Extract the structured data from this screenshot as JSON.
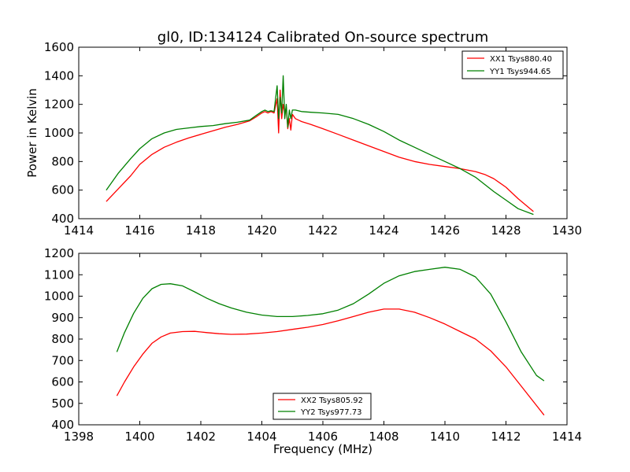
{
  "chart_data": [
    {
      "type": "line",
      "title": "gl0, ID:134124 Calibrated On-source spectrum",
      "xlabel": "",
      "ylabel": "Power in Kelvin",
      "xlim": [
        1414,
        1430
      ],
      "ylim": [
        400,
        1600
      ],
      "xticks": [
        "1414",
        "1416",
        "1418",
        "1420",
        "1422",
        "1424",
        "1426",
        "1428",
        "1430"
      ],
      "yticks": [
        "400",
        "600",
        "800",
        "1000",
        "1200",
        "1400",
        "1600"
      ],
      "grid": false,
      "legend_position": "top-right",
      "series": [
        {
          "name": "XX1 Tsys880.40",
          "color": "#ff0000",
          "x": [
            1414.9,
            1415.3,
            1415.7,
            1416.0,
            1416.4,
            1416.8,
            1417.2,
            1417.6,
            1418.0,
            1418.4,
            1418.8,
            1419.2,
            1419.6,
            1419.8,
            1420.0,
            1420.1,
            1420.2,
            1420.3,
            1420.4,
            1420.5,
            1420.55,
            1420.6,
            1420.65,
            1420.7,
            1420.75,
            1420.8,
            1420.85,
            1420.9,
            1420.95,
            1421.0,
            1421.1,
            1421.3,
            1421.6,
            1422.0,
            1422.5,
            1423.0,
            1423.5,
            1424.0,
            1424.5,
            1425.0,
            1425.5,
            1426.0,
            1426.5,
            1427.0,
            1427.3,
            1427.6,
            1428.0,
            1428.4,
            1428.9
          ],
          "y": [
            520,
            610,
            700,
            780,
            850,
            900,
            935,
            965,
            990,
            1015,
            1040,
            1060,
            1085,
            1110,
            1140,
            1150,
            1140,
            1150,
            1140,
            1240,
            1000,
            1300,
            1100,
            1200,
            1140,
            1180,
            1030,
            1100,
            1020,
            1130,
            1100,
            1080,
            1060,
            1030,
            990,
            950,
            910,
            870,
            830,
            800,
            780,
            765,
            750,
            730,
            710,
            680,
            620,
            540,
            450
          ]
        },
        {
          "name": "YY1 Tsys944.65",
          "color": "#008000",
          "x": [
            1414.9,
            1415.3,
            1415.7,
            1416.0,
            1416.4,
            1416.8,
            1417.2,
            1417.6,
            1418.0,
            1418.4,
            1418.8,
            1419.2,
            1419.6,
            1419.8,
            1420.0,
            1420.1,
            1420.2,
            1420.3,
            1420.4,
            1420.5,
            1420.55,
            1420.6,
            1420.65,
            1420.7,
            1420.75,
            1420.8,
            1420.85,
            1420.9,
            1420.95,
            1421.0,
            1421.1,
            1421.3,
            1421.6,
            1422.0,
            1422.5,
            1423.0,
            1423.5,
            1424.0,
            1424.5,
            1425.0,
            1425.5,
            1426.0,
            1426.5,
            1427.0,
            1427.3,
            1427.6,
            1428.0,
            1428.4,
            1428.9
          ],
          "y": [
            600,
            720,
            820,
            890,
            960,
            1000,
            1025,
            1035,
            1045,
            1052,
            1065,
            1075,
            1090,
            1120,
            1150,
            1160,
            1150,
            1155,
            1150,
            1330,
            1100,
            1250,
            1140,
            1400,
            1100,
            1200,
            1040,
            1160,
            1100,
            1160,
            1160,
            1150,
            1145,
            1140,
            1130,
            1100,
            1060,
            1010,
            950,
            900,
            850,
            800,
            750,
            690,
            640,
            590,
            530,
            470,
            430
          ]
        }
      ]
    },
    {
      "type": "line",
      "title": "",
      "xlabel": "Frequency (MHz)",
      "ylabel": "",
      "xlim": [
        1398,
        1414
      ],
      "ylim": [
        400,
        1200
      ],
      "xticks": [
        "1398",
        "1400",
        "1402",
        "1404",
        "1406",
        "1408",
        "1410",
        "1412",
        "1414"
      ],
      "yticks": [
        "400",
        "500",
        "600",
        "700",
        "800",
        "900",
        "1000",
        "1100",
        "1200"
      ],
      "grid": false,
      "legend_position": "bottom-center",
      "series": [
        {
          "name": "XX2 Tsys805.92",
          "color": "#ff0000",
          "x": [
            1399.25,
            1399.5,
            1399.8,
            1400.1,
            1400.4,
            1400.7,
            1401.0,
            1401.4,
            1401.8,
            1402.2,
            1402.6,
            1403.0,
            1403.5,
            1404.0,
            1404.5,
            1405.0,
            1405.5,
            1406.0,
            1406.5,
            1407.0,
            1407.5,
            1408.0,
            1408.5,
            1409.0,
            1409.5,
            1410.0,
            1410.5,
            1411.0,
            1411.5,
            1412.0,
            1412.5,
            1413.0,
            1413.25
          ],
          "y": [
            535,
            600,
            670,
            730,
            780,
            810,
            828,
            835,
            836,
            830,
            825,
            822,
            823,
            828,
            835,
            845,
            855,
            868,
            885,
            905,
            925,
            940,
            940,
            925,
            900,
            870,
            835,
            800,
            745,
            670,
            580,
            490,
            445
          ]
        },
        {
          "name": "YY2 Tsys977.73",
          "color": "#008000",
          "x": [
            1399.25,
            1399.5,
            1399.8,
            1400.1,
            1400.4,
            1400.7,
            1401.0,
            1401.4,
            1401.8,
            1402.2,
            1402.6,
            1403.0,
            1403.5,
            1404.0,
            1404.5,
            1405.0,
            1405.5,
            1406.0,
            1406.5,
            1407.0,
            1407.5,
            1408.0,
            1408.5,
            1409.0,
            1409.5,
            1410.0,
            1410.5,
            1411.0,
            1411.5,
            1412.0,
            1412.5,
            1413.0,
            1413.25
          ],
          "y": [
            740,
            830,
            920,
            990,
            1035,
            1055,
            1058,
            1048,
            1020,
            990,
            965,
            945,
            925,
            912,
            905,
            905,
            910,
            918,
            935,
            965,
            1010,
            1060,
            1095,
            1115,
            1125,
            1135,
            1125,
            1090,
            1010,
            880,
            740,
            630,
            605
          ]
        }
      ]
    }
  ]
}
